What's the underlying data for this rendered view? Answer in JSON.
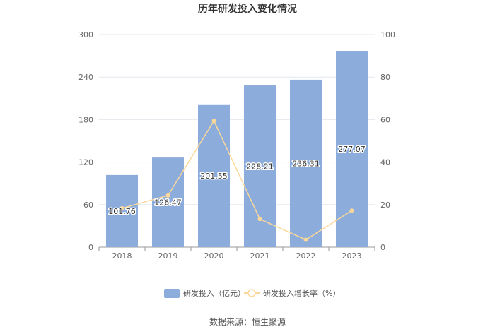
{
  "chart_data": {
    "type": "bar",
    "title": "历年研发投入变化情况",
    "categories": [
      "2018",
      "2019",
      "2020",
      "2021",
      "2022",
      "2023"
    ],
    "series": [
      {
        "name": "研发投入（亿元）",
        "type": "bar",
        "axis": "left",
        "color": "#8cacdb",
        "values": [
          101.76,
          126.47,
          201.55,
          228.21,
          236.31,
          277.07
        ],
        "labels": [
          "101.76",
          "126.47",
          "201.55",
          "228.21",
          "236.31",
          "277.07"
        ]
      },
      {
        "name": "研发投入增长率（%）",
        "type": "line",
        "axis": "right",
        "color": "#fbd89a",
        "values": [
          18.3,
          24.3,
          59.4,
          13.2,
          3.5,
          17.2
        ]
      }
    ],
    "y_left": {
      "min": 0,
      "max": 300,
      "ticks": [
        "0",
        "60",
        "120",
        "180",
        "240",
        "300"
      ]
    },
    "y_right": {
      "min": 0,
      "max": 100,
      "ticks": [
        "0",
        "20",
        "40",
        "60",
        "80",
        "100"
      ]
    },
    "grid": true,
    "legend_position": "bottom"
  },
  "source": "数据来源：恒生聚源"
}
